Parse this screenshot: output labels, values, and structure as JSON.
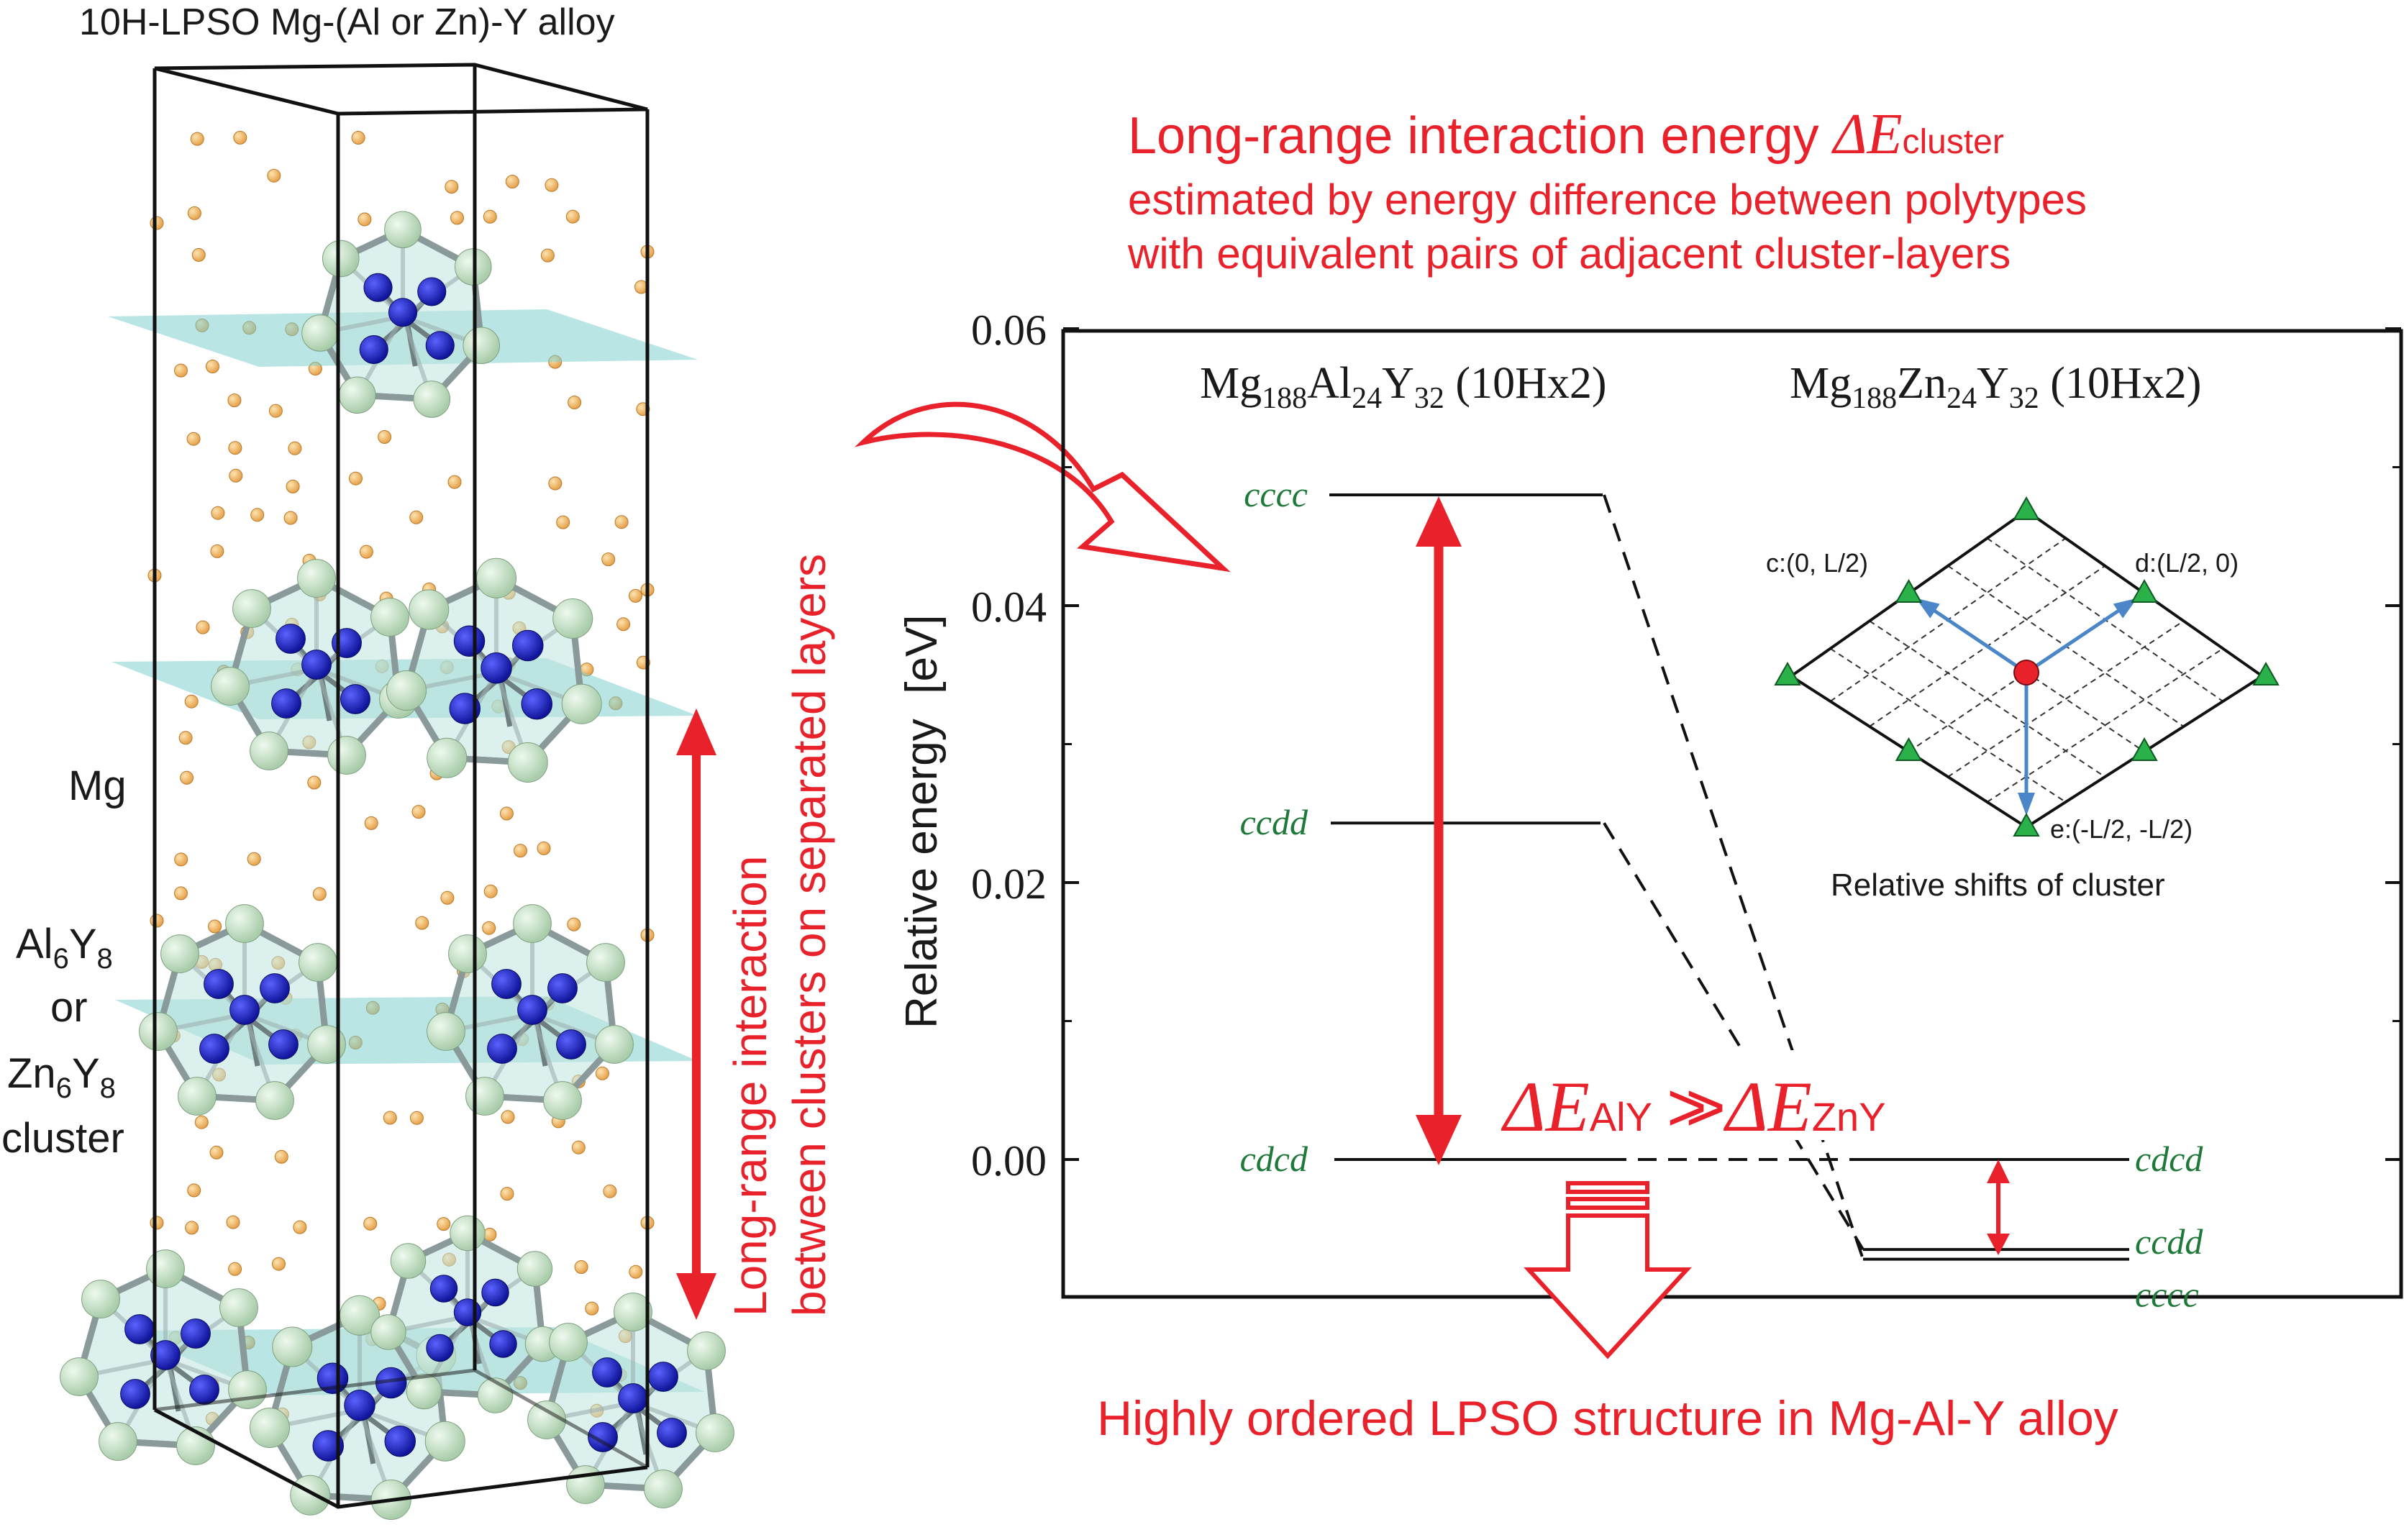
{
  "crystal": {
    "title": "10H-LPSO Mg-(Al or Zn)-Y alloy",
    "label_mg": "Mg",
    "label_cluster_al_main": "Al",
    "label_cluster_al_sub1": "6",
    "label_cluster_al_y": "Y",
    "label_cluster_al_sub2": "8",
    "label_cluster_or": "or",
    "label_cluster_zn_main": "Zn",
    "label_cluster_zn_sub1": "6",
    "label_cluster_zn_y": "Y",
    "label_cluster_zn_sub2": "8",
    "label_cluster_word": "cluster",
    "interaction_line1": "Long-range interaction",
    "interaction_line2": "between clusters on separated layers"
  },
  "header": {
    "line1_text": "Long-range interaction energy ",
    "line1_symbol": "ΔE",
    "line1_sub": "cluster",
    "line2": "estimated by energy difference between polytypes",
    "line3": "with equivalent pairs of adjacent cluster-layers"
  },
  "chart_data": {
    "type": "level-diagram",
    "ylabel": "Relative energy  [eV]",
    "ylim": [
      -0.01,
      0.06
    ],
    "yticks": [
      "0.06",
      "0.04",
      "0.02",
      "0.00"
    ],
    "series": [
      {
        "name_parts": [
          "Mg",
          "188",
          "Al",
          "24",
          "Y",
          "32",
          " (10Hx2)"
        ],
        "levels": [
          {
            "label": "cccc",
            "value": 0.048
          },
          {
            "label": "ccdd",
            "value": 0.0243
          },
          {
            "label": "cdcd",
            "value": 0.0
          }
        ]
      },
      {
        "name_parts": [
          "Mg",
          "188",
          "Zn",
          "24",
          "Y",
          "32",
          " (10Hx2)"
        ],
        "levels": [
          {
            "label": "cdcd",
            "value": 0.0
          },
          {
            "label": "ccdd",
            "value": -0.0065
          },
          {
            "label": "cccc",
            "value": -0.0072
          }
        ]
      }
    ],
    "comparison": {
      "left_symbol": "ΔE",
      "left_sub": "AlY",
      "relation": ">>",
      "right_symbol": "ΔE",
      "right_sub": "ZnY"
    }
  },
  "inset": {
    "label_c": "c:(0, L/2)",
    "label_d": "d:(L/2, 0)",
    "label_e": "e:(-L/2, -L/2)",
    "caption": "Relative shifts of cluster"
  },
  "conclusion": "Highly ordered LPSO structure in Mg-Al-Y alloy",
  "colors": {
    "accent_red": "#e8212b",
    "level_label_green": "#1f7a3a",
    "mg_atom": "#f2b35c",
    "y_atom": "#c9e3c9",
    "al_zn_atom": "#1a1fb5",
    "plane": "#7fcfcf",
    "inset_arrow": "#4a86c8",
    "inset_marker": "#2bb14a",
    "inset_center": "#e8212b"
  }
}
